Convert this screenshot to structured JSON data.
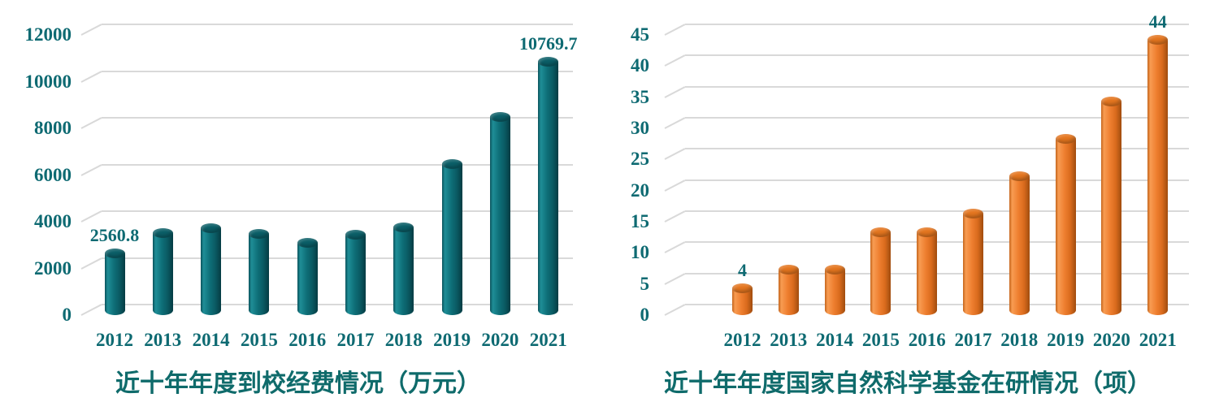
{
  "colors": {
    "background": "#ffffff",
    "gridline": "#d9d9d9",
    "axis_text": "#0e6a72",
    "data_label_text": "#0e6a72",
    "title_text": "#0f6b6b"
  },
  "chart_data": [
    {
      "type": "bar",
      "style": "3d-cylinder",
      "title": "近十年年度到校经费情况（万元）",
      "xlabel": "",
      "ylabel": "",
      "categories": [
        "2012",
        "2013",
        "2014",
        "2015",
        "2016",
        "2017",
        "2018",
        "2019",
        "2020",
        "2021"
      ],
      "values": [
        2560.8,
        3460,
        3650,
        3410,
        3030,
        3390,
        3680,
        6400,
        8410,
        10769.7
      ],
      "labeled_values": {
        "2012": "2560.8",
        "2021": "10769.7"
      },
      "ylim": [
        0,
        12000
      ],
      "yticks": [
        "0",
        "2000",
        "4000",
        "6000",
        "8000",
        "10000",
        "12000"
      ],
      "grid": true,
      "legend": "none",
      "bar_colors": {
        "edge_left": "#0a525b",
        "highlight": "#1f8e97",
        "main": "#0e6f78",
        "shade": "#0a5a63",
        "edge_right": "#053c43",
        "cap": "#0b5f68"
      }
    },
    {
      "type": "bar",
      "style": "3d-cylinder",
      "title": "近十年年度国家自然科学基金在研情况（项）",
      "xlabel": "",
      "ylabel": "",
      "categories": [
        "2012",
        "2013",
        "2014",
        "2015",
        "2016",
        "2017",
        "2018",
        "2019",
        "2020",
        "2021"
      ],
      "values": [
        4,
        7,
        7,
        13,
        13,
        16,
        22,
        28,
        34,
        44
      ],
      "labeled_values": {
        "2012": "4",
        "2021": "44"
      },
      "ylim": [
        0,
        45
      ],
      "yticks": [
        "0",
        "5",
        "10",
        "15",
        "20",
        "25",
        "30",
        "35",
        "40",
        "45"
      ],
      "grid": true,
      "legend": "none",
      "bar_colors": {
        "edge_left": "#c4651c",
        "highlight": "#f89c52",
        "main": "#ee7e2f",
        "shade": "#d96b1d",
        "edge_right": "#a04c0e",
        "cap": "#e5761f"
      }
    }
  ]
}
